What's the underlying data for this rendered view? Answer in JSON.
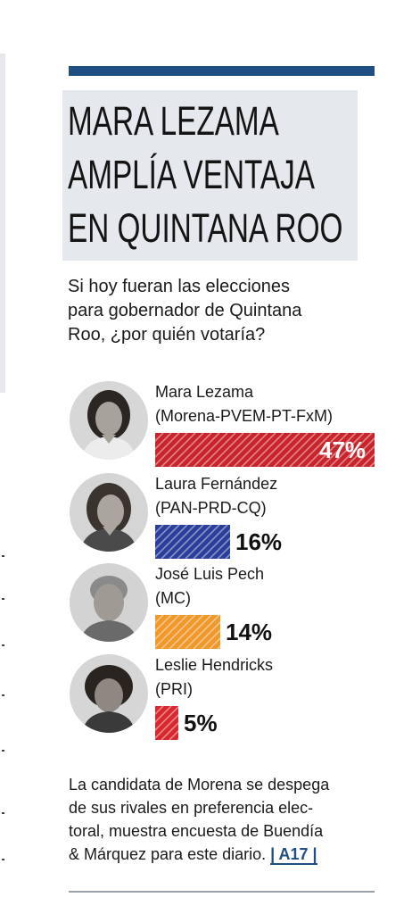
{
  "headline": {
    "lines": [
      "MARA LEZAMA",
      "AMPLÍA VENTAJA",
      "EN QUINTANA ROO"
    ]
  },
  "question": {
    "lines": [
      "Si hoy fueran las elecciones",
      "para gobernador de Quintana",
      "Roo, ¿por quién votaría?"
    ]
  },
  "chart_data": {
    "type": "bar",
    "categories": [
      "Mara Lezama",
      "Laura Fernández",
      "José Luis Pech",
      "Leslie Hendricks"
    ],
    "parties": [
      "(Morena-PVEM-PT-FxM)",
      "(PAN-PRD-CQ)",
      "(MC)",
      "(PRI)"
    ],
    "values": [
      47,
      16,
      14,
      5
    ],
    "value_labels": [
      "47%",
      "16%",
      "14%",
      "5%"
    ],
    "colors": [
      "#c8242b",
      "#2b3f9a",
      "#f0982a",
      "#d8282f"
    ],
    "title": "",
    "xlabel": "",
    "ylabel": "",
    "ylim": [
      0,
      47
    ]
  },
  "candidates": [
    {
      "name": "Mara Lezama",
      "party": "(Morena-PVEM-PT-FxM)",
      "pct": "47%",
      "portrait_icon": "candidate-portrait-icon"
    },
    {
      "name": "Laura Fernández",
      "party": "(PAN-PRD-CQ)",
      "pct": "16%",
      "portrait_icon": "candidate-portrait-icon"
    },
    {
      "name": "José Luis Pech",
      "party": "(MC)",
      "pct": "14%",
      "portrait_icon": "candidate-portrait-icon"
    },
    {
      "name": "Leslie Hendricks",
      "party": "(PRI)",
      "pct": "5%",
      "portrait_icon": "candidate-portrait-icon"
    }
  ],
  "note": {
    "lines": [
      "La candidata de Morena se despega",
      "de sus rivales en preferencia elec-",
      "toral, muestra encuesta de Buendía"
    ],
    "last_line": "& Márquez para este diario.",
    "ref": "| A17 |"
  },
  "colors": {
    "accent": "#1f4f82",
    "headline_bg": "#e5e8ed"
  }
}
